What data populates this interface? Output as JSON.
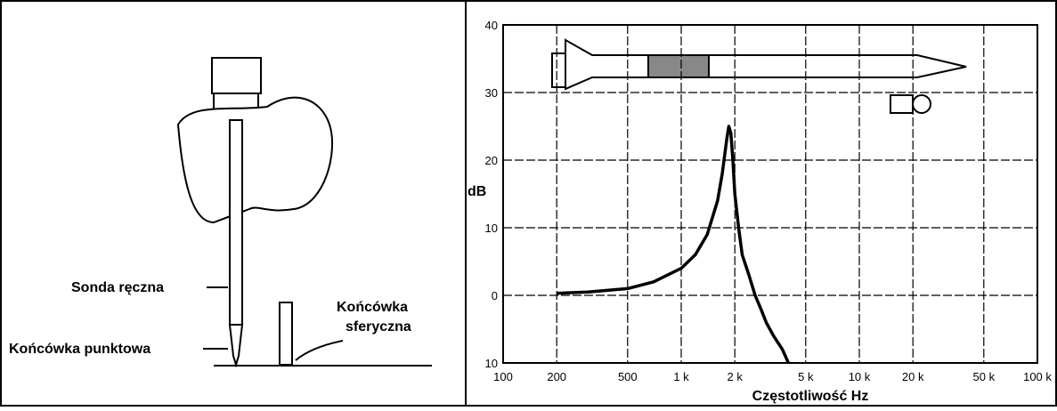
{
  "illustration": {
    "labels": [
      "Sonda ręczna",
      "Końcówka punktowa",
      "Końcówka",
      "sferyczna"
    ]
  },
  "chart_data": {
    "type": "line",
    "ylabel": "dB",
    "xlabel": "Częstotliwość Hz",
    "x": [
      200,
      300,
      500,
      700,
      1000,
      1200,
      1400,
      1600,
      1700,
      1800,
      1850,
      1900,
      1950,
      2000,
      2100,
      2200,
      2400,
      2600,
      2800,
      3000,
      3300,
      3700,
      4000
    ],
    "series": [
      {
        "color": "#000000",
        "values": [
          0.3,
          0.5,
          1,
          2,
          4,
          6,
          9,
          14,
          18,
          23,
          25,
          24,
          20,
          15,
          10,
          6,
          3,
          0,
          -2,
          -4,
          -6,
          -8,
          -10
        ]
      }
    ],
    "xlim": [
      100,
      100000
    ],
    "ylim": [
      -10,
      40
    ],
    "xscale": "log",
    "xticks": [
      100,
      200,
      500,
      {
        "value": 1000,
        "label": "1 k"
      },
      {
        "value": 2000,
        "label": "2 k"
      },
      {
        "value": 5000,
        "label": "5 k"
      },
      {
        "value": 10000,
        "label": "10 k"
      },
      {
        "value": 20000,
        "label": "20 k"
      },
      {
        "value": 50000,
        "label": "50 k"
      },
      {
        "value": 100000,
        "label": "100 k"
      }
    ],
    "yticks": [
      {
        "value": -10,
        "label": "10"
      },
      0,
      10,
      20,
      30,
      40
    ],
    "grid": true
  }
}
